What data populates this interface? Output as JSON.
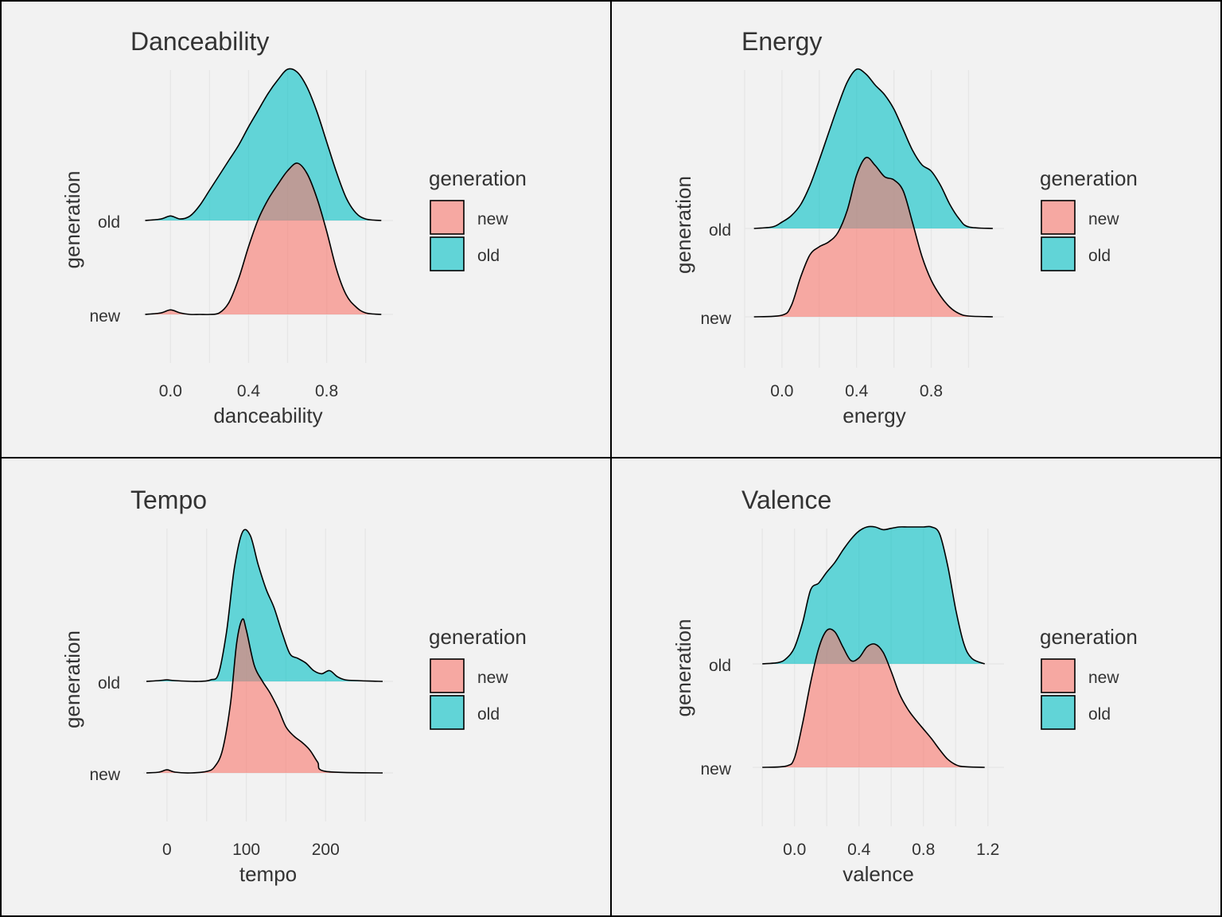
{
  "legend_title": "generation",
  "colors": {
    "new": "#F8766D",
    "old": "#00BFC4",
    "background": "#f2f2f2",
    "outline": "#000000",
    "grid": "#e6e6e6",
    "text": "#333333"
  },
  "chart_data": [
    {
      "type": "ridgeline-density",
      "title": "Danceability",
      "xlabel": "danceability",
      "ylabel": "generation",
      "x_ticks": [
        0.0,
        0.4,
        0.8
      ],
      "x_tick_labels": [
        "0.0",
        "0.4",
        "0.8"
      ],
      "xlim": [
        -0.14,
        1.14
      ],
      "x_range": [
        -0.13,
        1.08
      ],
      "categories": [
        "new",
        "old"
      ],
      "legend": {
        "position": "right",
        "entries": [
          "new",
          "old"
        ]
      },
      "grid": true,
      "series": [
        {
          "name": "old",
          "x": [
            -0.13,
            -0.05,
            0.0,
            0.05,
            0.1,
            0.15,
            0.2,
            0.25,
            0.3,
            0.35,
            0.4,
            0.45,
            0.5,
            0.55,
            0.6,
            0.65,
            0.7,
            0.75,
            0.8,
            0.85,
            0.9,
            0.95,
            1.0,
            1.08
          ],
          "density": [
            0,
            0.01,
            0.03,
            0.01,
            0.03,
            0.1,
            0.2,
            0.3,
            0.4,
            0.5,
            0.62,
            0.73,
            0.84,
            0.93,
            1.0,
            0.98,
            0.88,
            0.72,
            0.52,
            0.32,
            0.15,
            0.05,
            0.01,
            0
          ]
        },
        {
          "name": "new",
          "x": [
            -0.13,
            -0.05,
            0.0,
            0.05,
            0.1,
            0.15,
            0.2,
            0.25,
            0.3,
            0.35,
            0.4,
            0.45,
            0.5,
            0.55,
            0.6,
            0.65,
            0.7,
            0.75,
            0.8,
            0.85,
            0.9,
            0.95,
            1.0,
            1.08
          ],
          "density": [
            0,
            0.01,
            0.03,
            0.01,
            0,
            0,
            0,
            0.01,
            0.08,
            0.24,
            0.45,
            0.63,
            0.76,
            0.86,
            0.95,
            1.0,
            0.93,
            0.77,
            0.55,
            0.3,
            0.13,
            0.05,
            0.01,
            0
          ]
        }
      ]
    },
    {
      "type": "ridgeline-density",
      "title": "Energy",
      "xlabel": "energy",
      "ylabel": "generation",
      "x_ticks": [
        0.0,
        0.4,
        0.8
      ],
      "x_tick_labels": [
        "0.0",
        "0.4",
        "0.8"
      ],
      "xlim": [
        -0.2,
        1.19
      ],
      "x_range": [
        -0.15,
        1.13
      ],
      "categories": [
        "new",
        "old"
      ],
      "legend": {
        "position": "right",
        "entries": [
          "new",
          "old"
        ]
      },
      "grid": true,
      "series": [
        {
          "name": "old",
          "x": [
            -0.15,
            -0.05,
            0.0,
            0.05,
            0.1,
            0.15,
            0.2,
            0.25,
            0.3,
            0.35,
            0.4,
            0.45,
            0.5,
            0.55,
            0.6,
            0.65,
            0.7,
            0.75,
            0.8,
            0.85,
            0.9,
            0.95,
            1.0,
            1.13
          ],
          "density": [
            0,
            0.01,
            0.04,
            0.08,
            0.15,
            0.27,
            0.43,
            0.6,
            0.77,
            0.92,
            1.0,
            0.97,
            0.9,
            0.84,
            0.75,
            0.62,
            0.49,
            0.4,
            0.36,
            0.27,
            0.15,
            0.06,
            0.01,
            0
          ]
        },
        {
          "name": "new",
          "x": [
            -0.15,
            0.0,
            0.05,
            0.1,
            0.15,
            0.2,
            0.25,
            0.3,
            0.35,
            0.4,
            0.45,
            0.5,
            0.55,
            0.6,
            0.65,
            0.7,
            0.75,
            0.8,
            0.85,
            0.9,
            0.95,
            1.0,
            1.13
          ],
          "density": [
            0,
            0.01,
            0.07,
            0.25,
            0.39,
            0.44,
            0.47,
            0.53,
            0.67,
            0.89,
            1.0,
            0.95,
            0.88,
            0.86,
            0.79,
            0.59,
            0.38,
            0.23,
            0.13,
            0.06,
            0.02,
            0.005,
            0
          ]
        }
      ]
    },
    {
      "type": "ridgeline-density",
      "title": "Tempo",
      "xlabel": "tempo",
      "ylabel": "generation",
      "x_ticks": [
        0,
        100,
        200
      ],
      "x_tick_labels": [
        "0",
        "100",
        "200"
      ],
      "xlim": [
        -30,
        285
      ],
      "x_range": [
        -26,
        272
      ],
      "categories": [
        "new",
        "old"
      ],
      "legend": {
        "position": "right",
        "entries": [
          "new",
          "old"
        ]
      },
      "grid": true,
      "series": [
        {
          "name": "old",
          "x": [
            -26,
            -10,
            0,
            10,
            40,
            55,
            65,
            75,
            85,
            95,
            105,
            115,
            125,
            135,
            145,
            155,
            165,
            175,
            185,
            195,
            205,
            215,
            225,
            240,
            255,
            272
          ],
          "density": [
            0,
            0.005,
            0.01,
            0.005,
            0,
            0.01,
            0.05,
            0.32,
            0.74,
            0.97,
            0.95,
            0.76,
            0.6,
            0.48,
            0.32,
            0.18,
            0.15,
            0.12,
            0.07,
            0.05,
            0.07,
            0.03,
            0.01,
            0.005,
            0.002,
            0
          ]
        },
        {
          "name": "new",
          "x": [
            -26,
            -10,
            0,
            10,
            30,
            50,
            60,
            70,
            80,
            88,
            95,
            100,
            110,
            120,
            130,
            140,
            150,
            160,
            170,
            180,
            190,
            200,
            272
          ],
          "density": [
            0,
            0.005,
            0.02,
            0.005,
            0,
            0.01,
            0.04,
            0.15,
            0.45,
            0.85,
            1.0,
            0.93,
            0.7,
            0.6,
            0.52,
            0.42,
            0.3,
            0.24,
            0.2,
            0.15,
            0.07,
            0.01,
            0
          ]
        }
      ]
    },
    {
      "type": "ridgeline-density",
      "title": "Valence",
      "xlabel": "valence",
      "ylabel": "generation",
      "x_ticks": [
        0.0,
        0.4,
        0.8,
        1.2
      ],
      "x_tick_labels": [
        "0.0",
        "0.4",
        "0.8",
        "1.2"
      ],
      "xlim": [
        -0.26,
        1.3
      ],
      "x_range": [
        -0.2,
        1.18
      ],
      "categories": [
        "new",
        "old"
      ],
      "legend": {
        "position": "right",
        "entries": [
          "new",
          "old"
        ]
      },
      "grid": true,
      "series": [
        {
          "name": "old",
          "x": [
            -0.2,
            -0.1,
            -0.05,
            0.0,
            0.05,
            0.1,
            0.15,
            0.2,
            0.25,
            0.3,
            0.35,
            0.4,
            0.45,
            0.5,
            0.55,
            0.6,
            0.65,
            0.7,
            0.75,
            0.8,
            0.85,
            0.9,
            0.95,
            1.0,
            1.05,
            1.1,
            1.18
          ],
          "density": [
            0,
            0.01,
            0.04,
            0.12,
            0.3,
            0.54,
            0.59,
            0.67,
            0.74,
            0.83,
            0.91,
            0.97,
            1.0,
            1.0,
            0.98,
            0.99,
            1.0,
            1.0,
            1.0,
            1.0,
            1.0,
            0.95,
            0.72,
            0.4,
            0.15,
            0.04,
            0
          ]
        },
        {
          "name": "new",
          "x": [
            -0.2,
            -0.05,
            0.0,
            0.05,
            0.1,
            0.15,
            0.2,
            0.25,
            0.3,
            0.35,
            0.4,
            0.45,
            0.5,
            0.55,
            0.6,
            0.65,
            0.7,
            0.75,
            0.8,
            0.85,
            0.9,
            0.95,
            1.0,
            1.05,
            1.18
          ],
          "density": [
            0,
            0.01,
            0.07,
            0.32,
            0.62,
            0.87,
            1.0,
            0.99,
            0.88,
            0.78,
            0.8,
            0.88,
            0.9,
            0.84,
            0.7,
            0.54,
            0.43,
            0.35,
            0.28,
            0.21,
            0.13,
            0.06,
            0.02,
            0.005,
            0
          ]
        }
      ]
    }
  ]
}
